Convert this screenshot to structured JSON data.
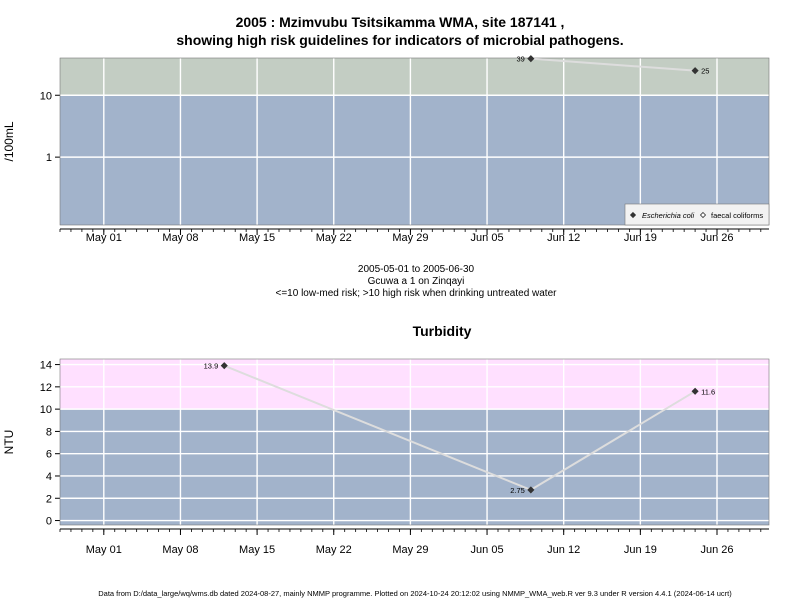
{
  "header": {
    "title_line1": "2005 : Mzimvubu Tsitsikamma WMA, site 187141 ,",
    "title_line2": "showing high risk guidelines for indicators of microbial pathogens."
  },
  "caption": {
    "date_range": "2005-05-01 to 2005-06-30",
    "site_name": "Gcuwa a 1 on Zinqayi",
    "risk_note": "<=10 low-med risk; >10 high risk when drinking untreated water"
  },
  "footer": "Data from D:/data_large/wq/wms.db dated 2024-08-27, mainly NMMP programme. Plotted on 2024-10-24 20:12:02 using NMMP_WMA_web.R ver 9.3 under R version 4.4.1 (2024-06-14 ucrt)",
  "colors": {
    "low_risk_band": "#a2b3cb",
    "high_risk_micro": "#c3cdc3",
    "high_risk_turbidity": "#ffe0ff",
    "grid": "#ffffff",
    "line": "#dddddd",
    "point": "#333333"
  },
  "chart_data": [
    {
      "type": "line",
      "title": "",
      "xlabel": "",
      "ylabel": "/100mL",
      "y_scale": "log",
      "ylim": [
        0.08,
        40
      ],
      "threshold": 10,
      "x_ticks": [
        "May 01",
        "May 08",
        "May 15",
        "May 22",
        "May 29",
        "Jun 05",
        "Jun 12",
        "Jun 19",
        "Jun 26"
      ],
      "y_ticks": [
        "1",
        "10"
      ],
      "series": [
        {
          "name": "Escherichia coli",
          "marker": "filled-diamond",
          "points": [
            {
              "x": "2005-06-09",
              "y": 39,
              "label": "39"
            },
            {
              "x": "2005-06-24",
              "y": 25,
              "label": "25"
            }
          ]
        },
        {
          "name": "faecal coliforms",
          "marker": "open-diamond",
          "points": []
        }
      ],
      "legend_position": "bottom-right",
      "grid": true
    },
    {
      "type": "line",
      "title": "Turbidity",
      "xlabel": "",
      "ylabel": "NTU",
      "ylim": [
        -0.4,
        14.5
      ],
      "threshold": 10,
      "x_ticks": [
        "May 01",
        "May 08",
        "May 15",
        "May 22",
        "May 29",
        "Jun 05",
        "Jun 12",
        "Jun 19",
        "Jun 26"
      ],
      "y_ticks": [
        "0",
        "2",
        "4",
        "6",
        "8",
        "10",
        "12",
        "14"
      ],
      "series": [
        {
          "marker": "filled-diamond",
          "points": [
            {
              "x": "2005-05-12",
              "y": 13.9,
              "label": "13.9"
            },
            {
              "x": "2005-06-09",
              "y": 2.75,
              "label": "2.75"
            },
            {
              "x": "2005-06-24",
              "y": 11.6,
              "label": "11.6"
            }
          ]
        }
      ],
      "grid": true
    }
  ]
}
